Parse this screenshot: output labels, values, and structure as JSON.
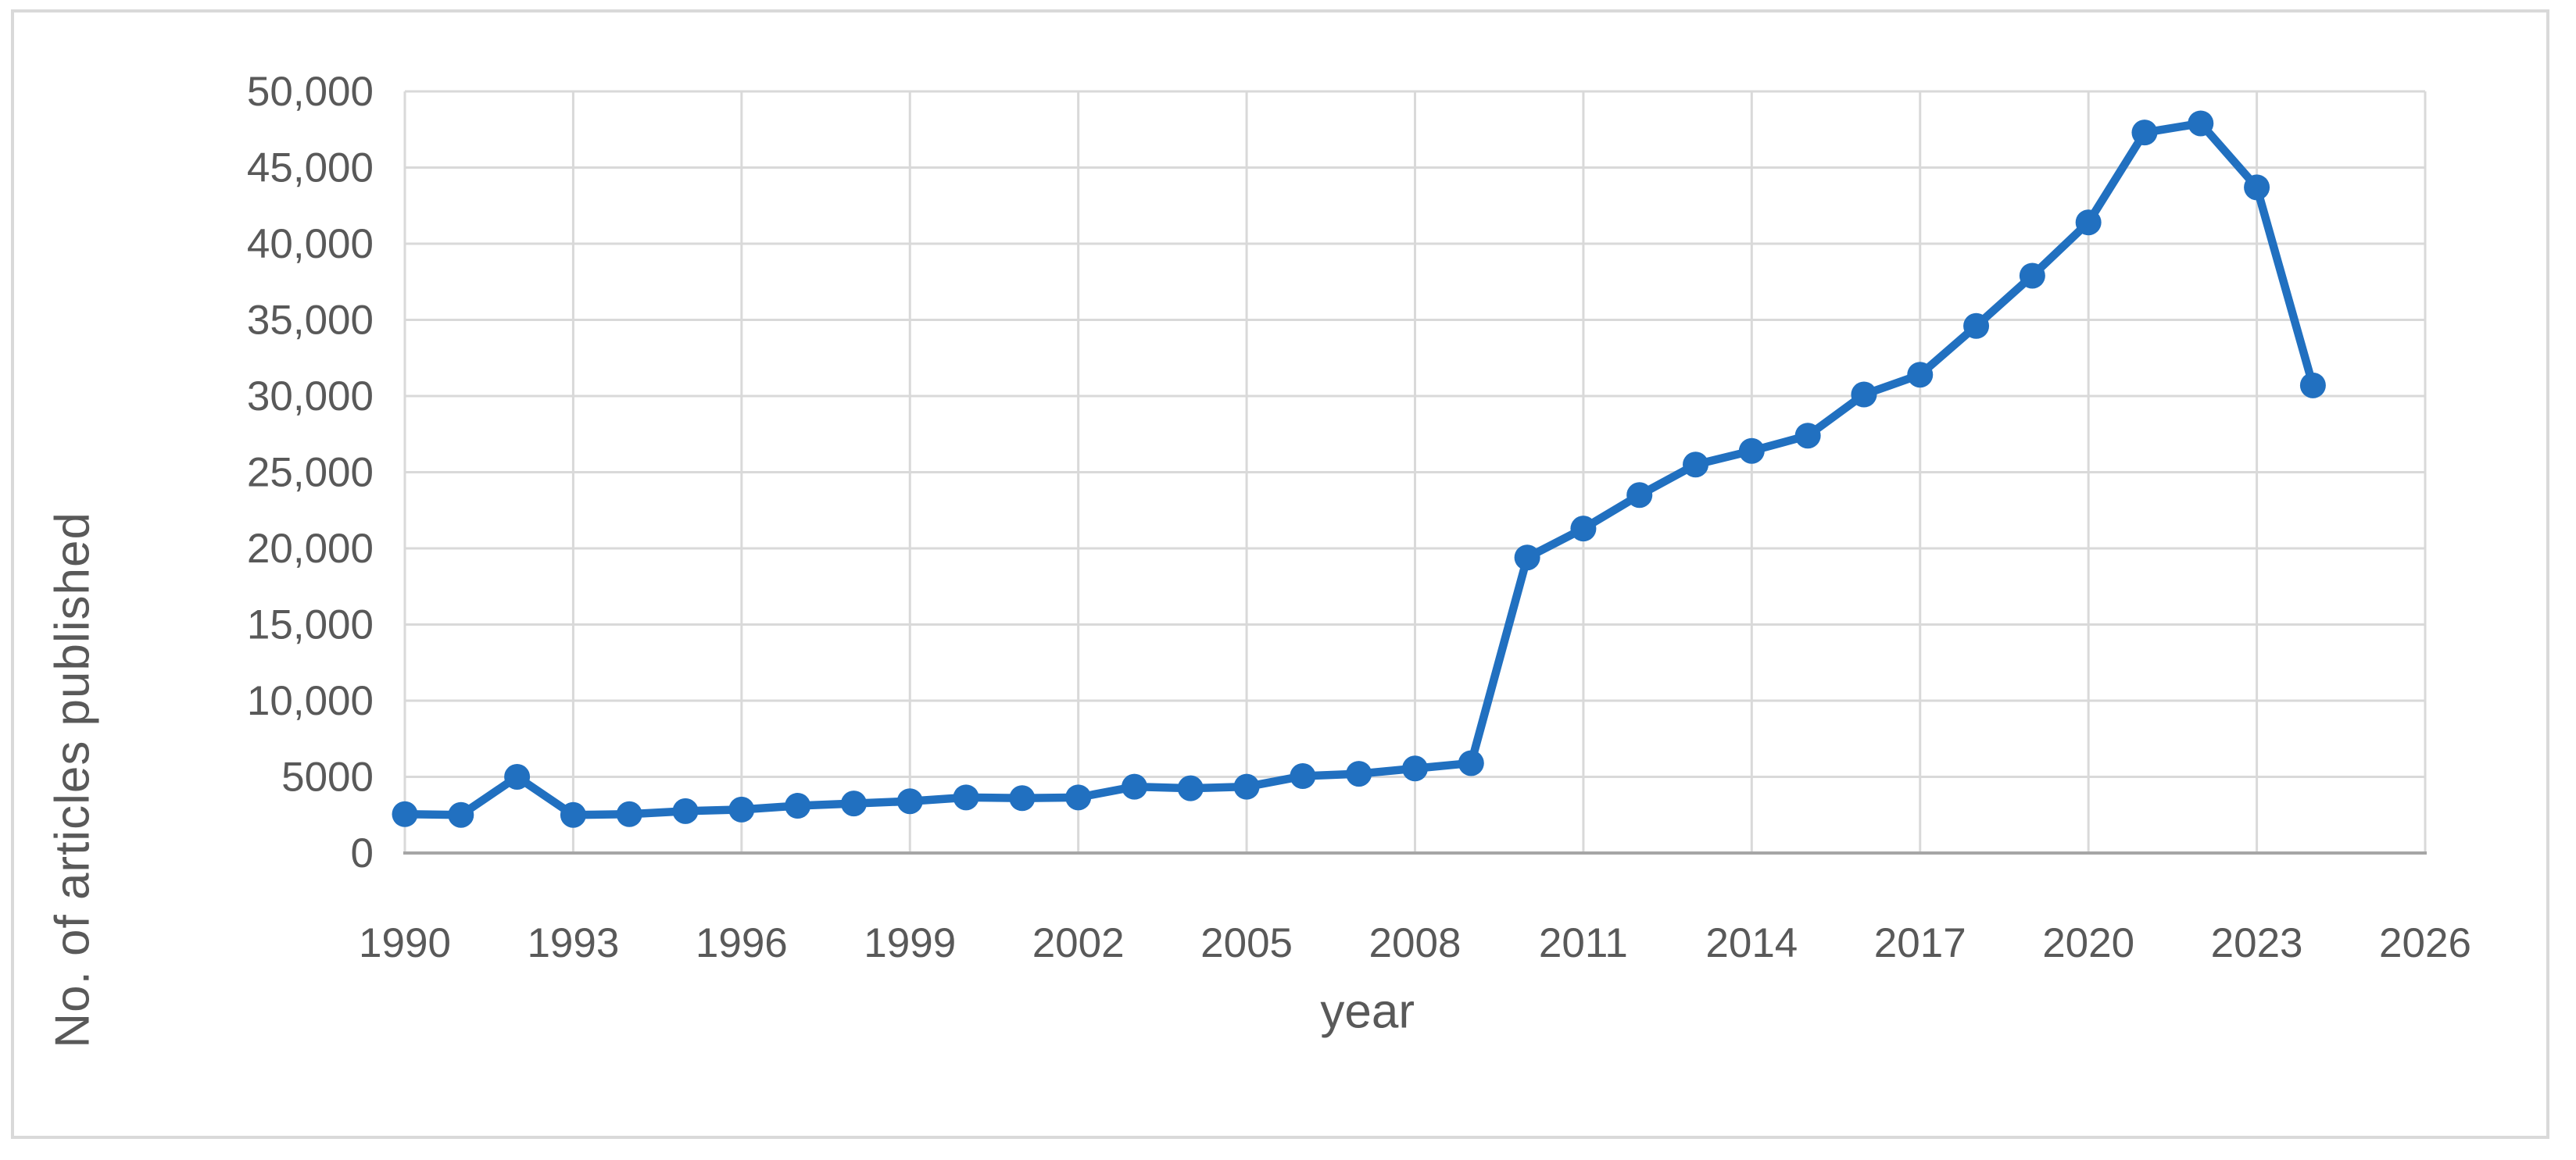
{
  "page": {
    "background_color": "#ffffff",
    "border_color": "#d9d9d9"
  },
  "chart": {
    "gridline_color": "#d9d9d9",
    "axis_line_color": "#a6a6a6",
    "tick_label_color": "#595959",
    "axis_title_color": "#595959"
  },
  "chart_data": {
    "type": "line",
    "title": "",
    "xlabel": "year",
    "ylabel": "No. of articles published",
    "line_color": "#2170c0",
    "marker": "circle",
    "grid": true,
    "legend": false,
    "xlim": [
      1990,
      2026
    ],
    "ylim": [
      0,
      50000
    ],
    "x_ticks": [
      1990,
      1993,
      1996,
      1999,
      2002,
      2005,
      2008,
      2011,
      2014,
      2017,
      2020,
      2023,
      2026
    ],
    "y_tick_values": [
      0,
      5000,
      10000,
      15000,
      20000,
      25000,
      30000,
      35000,
      40000,
      45000,
      50000
    ],
    "y_tick_labels": [
      "0",
      "5000",
      "10,000",
      "15,000",
      "20,000",
      "25,000",
      "30,000",
      "35,000",
      "40,000",
      "45,000",
      "50,000"
    ],
    "x": [
      1990,
      1991,
      1992,
      1993,
      1994,
      1995,
      1996,
      1997,
      1998,
      1999,
      2000,
      2001,
      2002,
      2003,
      2004,
      2005,
      2006,
      2007,
      2008,
      2009,
      2010,
      2011,
      2012,
      2013,
      2014,
      2015,
      2016,
      2017,
      2018,
      2019,
      2020,
      2021,
      2022,
      2023,
      2024
    ],
    "values": [
      2550,
      2500,
      5000,
      2500,
      2550,
      2750,
      2850,
      3100,
      3250,
      3400,
      3650,
      3600,
      3650,
      4350,
      4250,
      4350,
      5050,
      5200,
      5550,
      5900,
      19400,
      21300,
      23500,
      25500,
      26400,
      27400,
      30100,
      31400,
      34600,
      37900,
      41400,
      47300,
      47900,
      43700,
      30700
    ]
  }
}
